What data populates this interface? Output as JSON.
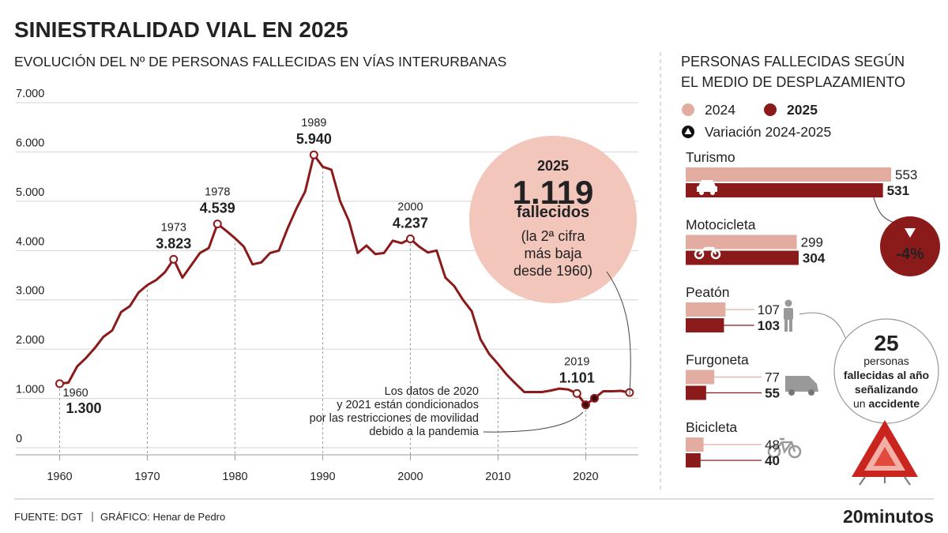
{
  "title": "SINIESTRALIDAD VIAL EN 2025",
  "source": "FUENTE: DGT",
  "credit": "GRÁFICO: Henar de Pedro",
  "brand": "20minutos",
  "chart_data": [
    {
      "type": "line",
      "title": "EVOLUCIÓN DEL Nº DE PERSONAS FALLECIDAS EN VÍAS INTERURBANAS",
      "color": "#8b1a1a",
      "x": [
        1960,
        1961,
        1962,
        1963,
        1964,
        1965,
        1966,
        1967,
        1968,
        1969,
        1970,
        1971,
        1972,
        1973,
        1974,
        1975,
        1976,
        1977,
        1978,
        1979,
        1980,
        1981,
        1982,
        1983,
        1984,
        1985,
        1986,
        1987,
        1988,
        1989,
        1990,
        1991,
        1992,
        1993,
        1994,
        1995,
        1996,
        1997,
        1998,
        1999,
        2000,
        2001,
        2002,
        2003,
        2004,
        2005,
        2006,
        2007,
        2008,
        2009,
        2010,
        2011,
        2012,
        2013,
        2014,
        2015,
        2016,
        2017,
        2018,
        2019,
        2020,
        2021,
        2022,
        2023,
        2024,
        2025
      ],
      "values": [
        1300,
        1320,
        1650,
        1820,
        2020,
        2250,
        2380,
        2750,
        2870,
        3150,
        3300,
        3400,
        3560,
        3823,
        3450,
        3700,
        3950,
        4050,
        4539,
        4400,
        4250,
        4080,
        3720,
        3760,
        3950,
        4000,
        4450,
        4850,
        5200,
        5940,
        5700,
        5640,
        5000,
        4600,
        3950,
        4100,
        3930,
        3950,
        4200,
        4150,
        4237,
        4080,
        3960,
        4000,
        3450,
        3280,
        3000,
        2770,
        2200,
        1900,
        1700,
        1480,
        1300,
        1130,
        1130,
        1130,
        1160,
        1200,
        1180,
        1101,
        870,
        1004,
        1145,
        1145,
        1154,
        1119
      ],
      "value_labels": [
        "1.300",
        null,
        null,
        null,
        null,
        null,
        null,
        null,
        null,
        null,
        null,
        null,
        null,
        "3.823",
        null,
        null,
        null,
        null,
        "4.539",
        null,
        null,
        null,
        null,
        null,
        null,
        null,
        null,
        null,
        null,
        "5.940",
        null,
        null,
        null,
        null,
        null,
        null,
        null,
        null,
        null,
        null,
        "4.237",
        null,
        null,
        null,
        null,
        null,
        null,
        null,
        null,
        null,
        null,
        null,
        null,
        null,
        null,
        null,
        null,
        null,
        null,
        "1.101",
        null,
        null,
        null,
        null,
        null,
        "1.119"
      ],
      "markers": [
        "open",
        null,
        null,
        null,
        null,
        null,
        null,
        null,
        null,
        null,
        null,
        null,
        null,
        "open",
        null,
        null,
        null,
        null,
        "open",
        null,
        null,
        null,
        null,
        null,
        null,
        null,
        null,
        null,
        null,
        "open",
        null,
        null,
        null,
        null,
        null,
        null,
        null,
        null,
        null,
        null,
        "open",
        null,
        null,
        null,
        null,
        null,
        null,
        null,
        null,
        null,
        null,
        null,
        null,
        null,
        null,
        null,
        null,
        null,
        null,
        "open",
        "filled",
        "filled",
        null,
        null,
        null,
        "open"
      ],
      "xlim": [
        1955,
        2026
      ],
      "xticks": [
        1960,
        1970,
        1980,
        1990,
        2000,
        2010,
        2020
      ],
      "ylim": [
        0,
        7000
      ],
      "yticks": [
        0,
        {
          "value": 1000,
          "label": "1.000"
        },
        {
          "value": 2000,
          "label": "2.000"
        },
        {
          "value": 3000,
          "label": "3.000"
        },
        {
          "value": 4000,
          "label": "4.000"
        },
        {
          "value": 5000,
          "label": "5.000"
        },
        {
          "value": 6000,
          "label": "6.000"
        },
        {
          "value": 7000,
          "label": "7.000"
        }
      ],
      "grid": true,
      "callout": {
        "lines": [
          "fallecidos",
          "(la 2ª cifra",
          "más baja",
          "desde 1960)"
        ]
      },
      "note": [
        "Los datos de 2020",
        "y 2021 están condicionados",
        "por las restricciones de movilidad",
        "debido a la pandemia"
      ]
    },
    {
      "type": "bar",
      "orientation": "horizontal",
      "title": [
        "PERSONAS FALLECIDAS SEGÚN",
        "EL MEDIO DE DESPLAZAMIENTO"
      ],
      "categories": [
        "Turismo",
        "Motocicleta",
        "Peatón",
        "Furgoneta",
        "Bicicleta"
      ],
      "series": [
        {
          "name": "2024",
          "color": "#e2ada0",
          "values": [
            553,
            299,
            107,
            77,
            48
          ]
        },
        {
          "name": "2025",
          "color": "#8b1a1a",
          "values": [
            531,
            304,
            103,
            55,
            40
          ]
        }
      ],
      "variation": {
        "label": "Variación 2024-2025",
        "value": -4,
        "value_label": "-4%",
        "color": "#8b1a1a"
      },
      "callout": {
        "value": 25,
        "lines": [
          "personas",
          "fallecidas al año",
          "señalizando",
          "un",
          "accidente"
        ]
      }
    }
  ]
}
